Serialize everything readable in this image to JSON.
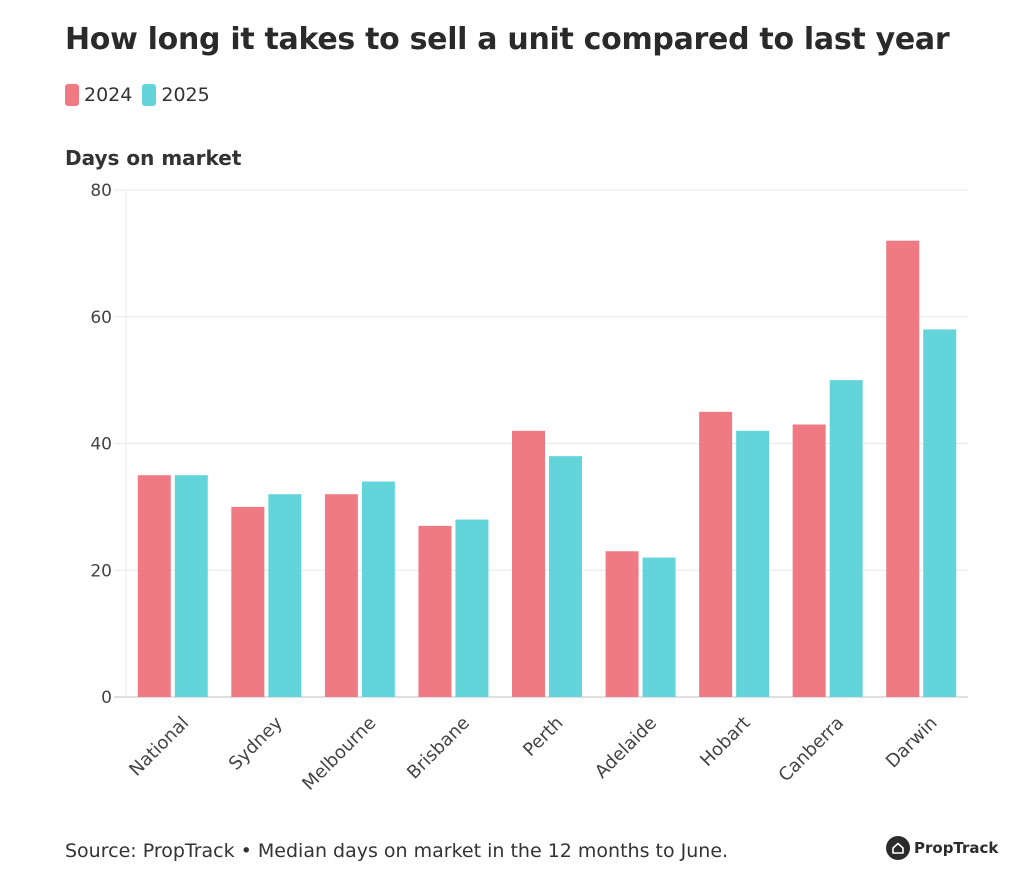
{
  "chart_data": {
    "type": "bar",
    "title": "How long it takes to sell a unit compared to last year",
    "ylabel": "Days on market",
    "xlabel": "",
    "categories": [
      "National",
      "Sydney",
      "Melbourne",
      "Brisbane",
      "Perth",
      "Adelaide",
      "Hobart",
      "Canberra",
      "Darwin"
    ],
    "series": [
      {
        "name": "2024",
        "color": "#f07a84",
        "values": [
          35,
          30,
          32,
          27,
          42,
          23,
          45,
          43,
          72
        ]
      },
      {
        "name": "2025",
        "color": "#63d5da",
        "values": [
          35,
          32,
          34,
          28,
          38,
          22,
          42,
          50,
          58
        ]
      }
    ],
    "ylim": [
      0,
      80
    ],
    "yticks": [
      0,
      20,
      40,
      60,
      80
    ],
    "grid": true,
    "legend_position": "top-left"
  },
  "footer": {
    "source": "Source: PropTrack • Median days on market in the 12 months to June.",
    "brand": "PropTrack"
  }
}
